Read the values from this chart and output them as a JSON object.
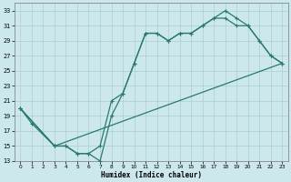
{
  "xlabel": "Humidex (Indice chaleur)",
  "bg_color": "#cce8ec",
  "grid_color": "#aacdd4",
  "line_color": "#2a7a6e",
  "xlim": [
    -0.5,
    23.5
  ],
  "ylim": [
    13,
    34
  ],
  "xticks": [
    0,
    1,
    2,
    3,
    4,
    5,
    6,
    7,
    8,
    9,
    10,
    11,
    12,
    13,
    14,
    15,
    16,
    17,
    18,
    19,
    20,
    21,
    22,
    23
  ],
  "yticks": [
    13,
    15,
    17,
    19,
    21,
    23,
    25,
    27,
    29,
    31,
    33
  ],
  "line1_x": [
    0,
    1,
    3,
    4,
    5,
    6,
    7,
    8,
    9,
    10,
    11,
    12,
    13,
    14,
    15,
    16,
    17,
    18,
    19,
    20,
    21,
    22,
    23
  ],
  "line1_y": [
    20,
    18,
    15,
    15,
    14,
    14,
    13,
    19,
    22,
    26,
    30,
    30,
    29,
    30,
    30,
    31,
    32,
    33,
    32,
    31,
    29,
    27,
    26
  ],
  "line2_x": [
    0,
    3,
    4,
    5,
    6,
    7,
    8,
    9,
    10,
    11,
    12,
    13,
    14,
    15,
    16,
    17,
    18,
    19,
    20,
    21,
    22,
    23
  ],
  "line2_y": [
    20,
    15,
    15,
    14,
    14,
    15,
    21,
    22,
    26,
    30,
    30,
    29,
    30,
    30,
    31,
    32,
    32,
    31,
    31,
    29,
    27,
    26
  ],
  "line3_x": [
    0,
    3,
    23
  ],
  "line3_y": [
    20,
    15,
    26
  ],
  "marker_size": 2.5,
  "linewidth": 0.9
}
